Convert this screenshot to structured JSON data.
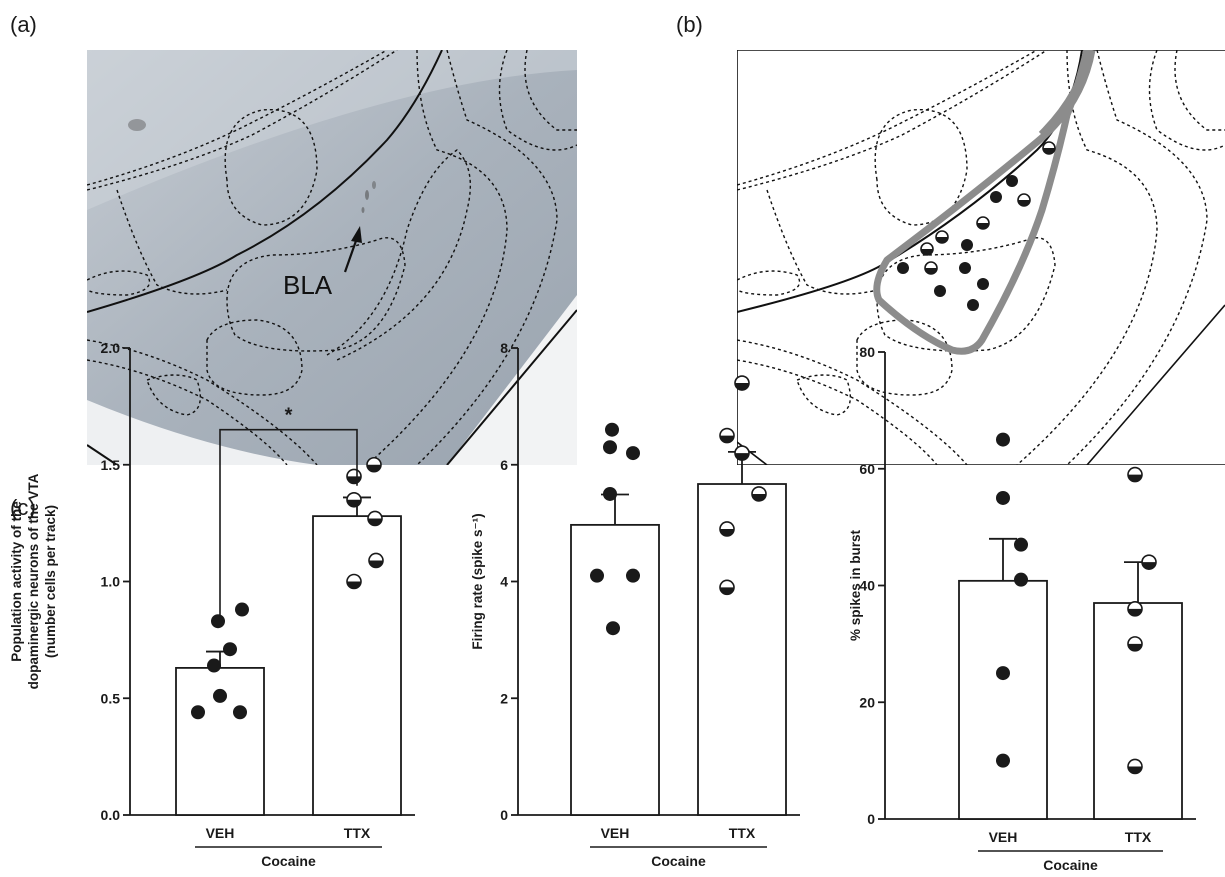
{
  "panels": {
    "a": "(a)",
    "b": "(b)",
    "c": "(c)"
  },
  "histology": {
    "region_label": "BLA"
  },
  "colors": {
    "filled_dot": "#1a1a1a",
    "half_dot": "#1a1a1a",
    "lesion_outline": "#8c8c8c",
    "tissue": "#aeb7c1"
  },
  "chart_data": [
    {
      "type": "bar",
      "ylabel": "Population activity of the dopaminergic neurons of the VTA (number cells per track)",
      "ylabel_lines": [
        "Population activity of the",
        "dopaminergic neurons of the VTA",
        "(number cells per track)"
      ],
      "group_label": "Cocaine",
      "categories": [
        "VEH",
        "TTX"
      ],
      "values": [
        0.63,
        1.28
      ],
      "sem": [
        0.07,
        0.08
      ],
      "ylim": [
        0,
        2.0
      ],
      "yticks": [
        "0.0",
        "0.5",
        "1.0",
        "1.5",
        "2.0"
      ],
      "points": [
        [
          0.44,
          0.44,
          0.51,
          0.64,
          0.71,
          0.83,
          0.88
        ],
        [
          1.0,
          1.09,
          1.27,
          1.35,
          1.45,
          1.5
        ]
      ],
      "significance": {
        "label": "*",
        "from": "VEH",
        "to": "TTX",
        "y": 1.65
      }
    },
    {
      "type": "bar",
      "ylabel": "Firing rate (spike s⁻¹)",
      "group_label": "Cocaine",
      "categories": [
        "VEH",
        "TTX"
      ],
      "values": [
        4.97,
        5.67
      ],
      "sem": [
        0.52,
        0.55
      ],
      "ylim": [
        0,
        8
      ],
      "yticks": [
        "0",
        "2",
        "4",
        "6",
        "8"
      ],
      "points": [
        [
          3.2,
          4.1,
          4.1,
          5.5,
          6.2,
          6.3,
          6.6
        ],
        [
          3.9,
          4.9,
          5.5,
          6.2,
          6.5,
          7.4
        ]
      ]
    },
    {
      "type": "bar",
      "ylabel": "% spikes in burst",
      "group_label": "Cocaine",
      "categories": [
        "VEH",
        "TTX"
      ],
      "values": [
        40.8,
        37.0
      ],
      "sem": [
        7.2,
        7.0
      ],
      "ylim": [
        0,
        80
      ],
      "yticks": [
        "0",
        "20",
        "40",
        "60",
        "80"
      ],
      "points": [
        [
          10,
          25,
          41,
          47,
          55,
          65
        ],
        [
          9,
          30,
          36,
          44,
          59
        ]
      ]
    }
  ]
}
